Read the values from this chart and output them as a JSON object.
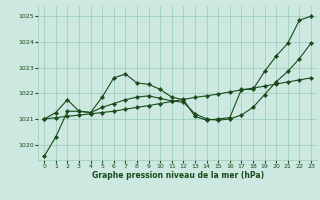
{
  "xlabel": "Graphe pression niveau de la mer (hPa)",
  "bg_color": "#cce8e0",
  "grid_color": "#99ccbb",
  "line_color": "#1a4a1a",
  "ylim": [
    1019.4,
    1025.4
  ],
  "xlim": [
    -0.5,
    23.5
  ],
  "yticks": [
    1020,
    1021,
    1022,
    1023,
    1024,
    1025
  ],
  "xticks": [
    0,
    1,
    2,
    3,
    4,
    5,
    6,
    7,
    8,
    9,
    10,
    11,
    12,
    13,
    14,
    15,
    16,
    17,
    18,
    19,
    20,
    21,
    22,
    23
  ],
  "s1": [
    1019.55,
    1020.3,
    1021.3,
    1021.3,
    1021.25,
    1021.85,
    1022.6,
    1022.75,
    1022.4,
    1022.35,
    1022.15,
    1021.85,
    1021.75,
    1021.1,
    1020.95,
    1021.0,
    1021.05,
    1022.15,
    1022.15,
    1022.85,
    1023.45,
    1023.95,
    1024.85,
    1025.0
  ],
  "s2": [
    1021.0,
    1021.05,
    1021.1,
    1021.15,
    1021.2,
    1021.25,
    1021.3,
    1021.38,
    1021.45,
    1021.52,
    1021.6,
    1021.68,
    1021.76,
    1021.84,
    1021.9,
    1021.97,
    1022.05,
    1022.13,
    1022.2,
    1022.28,
    1022.36,
    1022.44,
    1022.52,
    1022.6
  ],
  "s3": [
    1021.0,
    1021.25,
    1021.75,
    1021.3,
    1021.25,
    1021.45,
    1021.6,
    1021.75,
    1021.85,
    1021.9,
    1021.8,
    1021.7,
    1021.65,
    1021.2,
    1021.0,
    1020.95,
    1021.0,
    1021.15,
    1021.45,
    1021.95,
    1022.45,
    1022.85,
    1023.35,
    1023.95
  ]
}
